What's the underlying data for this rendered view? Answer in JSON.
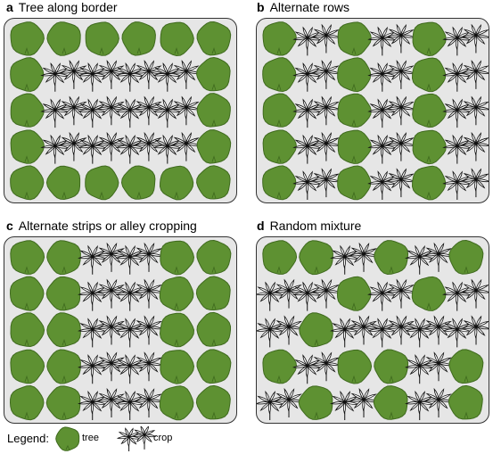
{
  "panels": [
    {
      "id": "a",
      "letter": "a",
      "title": "Tree along border",
      "grid": [
        [
          "tree",
          "tree",
          "tree",
          "tree",
          "tree",
          "tree"
        ],
        [
          "tree",
          "crop",
          "crop",
          "crop",
          "crop",
          "tree"
        ],
        [
          "tree",
          "crop",
          "crop",
          "crop",
          "crop",
          "tree"
        ],
        [
          "tree",
          "crop",
          "crop",
          "crop",
          "crop",
          "tree"
        ],
        [
          "tree",
          "tree",
          "tree",
          "tree",
          "tree",
          "tree"
        ]
      ]
    },
    {
      "id": "b",
      "letter": "b",
      "title": "Alternate rows",
      "grid": [
        [
          "tree",
          "crop",
          "tree",
          "crop",
          "tree",
          "crop"
        ],
        [
          "tree",
          "crop",
          "tree",
          "crop",
          "tree",
          "crop"
        ],
        [
          "tree",
          "crop",
          "tree",
          "crop",
          "tree",
          "crop"
        ],
        [
          "tree",
          "crop",
          "tree",
          "crop",
          "tree",
          "crop"
        ],
        [
          "tree",
          "crop",
          "tree",
          "crop",
          "tree",
          "crop"
        ]
      ]
    },
    {
      "id": "c",
      "letter": "c",
      "title": "Alternate strips or alley cropping",
      "grid": [
        [
          "tree",
          "tree",
          "crop",
          "crop",
          "tree",
          "tree"
        ],
        [
          "tree",
          "tree",
          "crop",
          "crop",
          "tree",
          "tree"
        ],
        [
          "tree",
          "tree",
          "crop",
          "crop",
          "tree",
          "tree"
        ],
        [
          "tree",
          "tree",
          "crop",
          "crop",
          "tree",
          "tree"
        ],
        [
          "tree",
          "tree",
          "crop",
          "crop",
          "tree",
          "tree"
        ]
      ]
    },
    {
      "id": "d",
      "letter": "d",
      "title": "Random mixture",
      "grid": [
        [
          "tree",
          "tree",
          "crop",
          "tree",
          "crop",
          "tree"
        ],
        [
          "crop",
          "crop",
          "tree",
          "crop",
          "tree",
          "crop"
        ],
        [
          "crop",
          "tree",
          "crop",
          "crop",
          "crop",
          "crop"
        ],
        [
          "tree",
          "crop",
          "tree",
          "tree",
          "crop",
          "tree"
        ],
        [
          "crop",
          "tree",
          "crop",
          "tree",
          "crop",
          "tree"
        ]
      ]
    }
  ],
  "legend": {
    "title": "Legend:",
    "tree_label": "tree",
    "crop_label": "crop"
  },
  "colors": {
    "tree_fill": "#5e9132",
    "tree_stroke": "#3f6a1e",
    "panel_background": "#e6e6e6",
    "panel_border": "#333333",
    "crop_stroke": "#111111",
    "crop_fill": "#ffffff"
  }
}
